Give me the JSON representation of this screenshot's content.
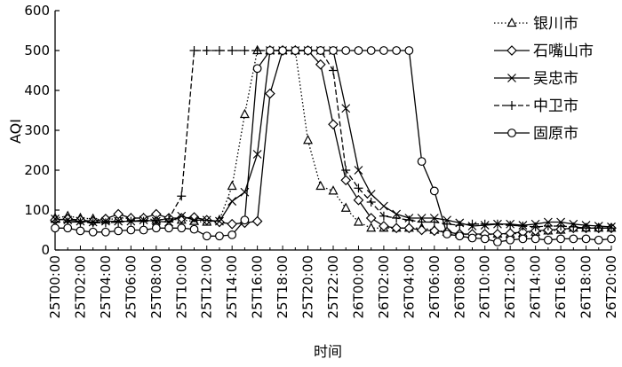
{
  "chart_data": {
    "type": "line",
    "title": "",
    "xlabel": "时间",
    "ylabel": "AQI",
    "ylim": [
      0,
      600
    ],
    "y_ticks": [
      0,
      100,
      200,
      300,
      400,
      500,
      600
    ],
    "x_tick_labels": [
      "25T00:00",
      "25T02:00",
      "25T04:00",
      "25T06:00",
      "25T08:00",
      "25T10:00",
      "25T12:00",
      "25T14:00",
      "25T16:00",
      "25T18:00",
      "25T20:00",
      "25T22:00",
      "26T00:00",
      "26T02:00",
      "26T04:00",
      "26T06:00",
      "26T08:00",
      "26T10:00",
      "26T12:00",
      "26T14:00",
      "26T16:00",
      "26T18:00",
      "26T20:00"
    ],
    "x_hours_range": [
      0,
      44
    ],
    "grid": false,
    "legend_position": "top-right",
    "series": [
      {
        "name": "银川市",
        "marker": "triangle",
        "dash": "dotted",
        "x": [
          0,
          1,
          2,
          3,
          4,
          5,
          6,
          7,
          8,
          9,
          10,
          11,
          12,
          13,
          14,
          15,
          16,
          17,
          18,
          19,
          20,
          21,
          22,
          23,
          24,
          25,
          26,
          27,
          28,
          29,
          30,
          31,
          32,
          33,
          34,
          35,
          36,
          37,
          38,
          39,
          40,
          41,
          42,
          43,
          44
        ],
        "values": [
          80,
          85,
          80,
          78,
          75,
          80,
          80,
          80,
          75,
          78,
          75,
          72,
          70,
          75,
          160,
          340,
          500,
          500,
          500,
          500,
          275,
          160,
          148,
          105,
          70,
          55,
          55,
          55,
          55,
          55,
          50,
          45,
          40,
          38,
          38,
          40,
          40,
          42,
          45,
          48,
          50,
          55,
          55,
          55,
          55
        ]
      },
      {
        "name": "石嘴山市",
        "marker": "diamond",
        "dash": "solid",
        "x": [
          0,
          1,
          2,
          3,
          4,
          5,
          6,
          7,
          8,
          9,
          10,
          11,
          12,
          13,
          14,
          15,
          16,
          17,
          18,
          19,
          20,
          21,
          22,
          23,
          24,
          25,
          26,
          27,
          28,
          29,
          30,
          31,
          32,
          33,
          34,
          35,
          36,
          37,
          38,
          39,
          40,
          41,
          42,
          43,
          44
        ],
        "values": [
          75,
          78,
          75,
          72,
          78,
          90,
          80,
          80,
          90,
          80,
          80,
          82,
          75,
          70,
          65,
          68,
          72,
          392,
          500,
          500,
          500,
          465,
          315,
          175,
          125,
          80,
          60,
          55,
          55,
          50,
          48,
          45,
          40,
          40,
          40,
          40,
          42,
          45,
          48,
          50,
          52,
          55,
          55,
          55,
          55
        ]
      },
      {
        "name": "吴忠市",
        "marker": "x",
        "dash": "solid",
        "x": [
          0,
          1,
          2,
          3,
          4,
          5,
          6,
          7,
          8,
          9,
          10,
          11,
          12,
          13,
          14,
          15,
          16,
          17,
          18,
          19,
          20,
          21,
          22,
          23,
          24,
          25,
          26,
          27,
          28,
          29,
          30,
          31,
          32,
          33,
          34,
          35,
          36,
          37,
          38,
          39,
          40,
          41,
          42,
          43,
          44
        ],
        "values": [
          78,
          75,
          72,
          70,
          72,
          72,
          72,
          75,
          72,
          70,
          85,
          75,
          75,
          72,
          122,
          145,
          240,
          500,
          500,
          500,
          500,
          500,
          500,
          355,
          200,
          140,
          110,
          90,
          80,
          80,
          80,
          75,
          68,
          60,
          62,
          65,
          65,
          62,
          65,
          70,
          70,
          65,
          62,
          60,
          58
        ]
      },
      {
        "name": "中卫市",
        "marker": "plus",
        "dash": "dashed",
        "x": [
          0,
          1,
          2,
          3,
          4,
          5,
          6,
          7,
          8,
          9,
          10,
          11,
          12,
          13,
          14,
          15,
          16,
          17,
          18,
          19,
          20,
          21,
          22,
          23,
          24,
          25,
          26,
          27,
          28,
          29,
          30,
          31,
          32,
          33,
          34,
          35,
          36,
          37,
          38,
          39,
          40,
          41,
          42,
          43,
          44
        ],
        "values": [
          70,
          70,
          70,
          68,
          68,
          70,
          72,
          72,
          75,
          78,
          135,
          500,
          500,
          500,
          500,
          500,
          500,
          500,
          500,
          500,
          500,
          500,
          450,
          200,
          155,
          120,
          85,
          80,
          75,
          70,
          70,
          65,
          62,
          65,
          65,
          65,
          62,
          60,
          58,
          60,
          60,
          58,
          55,
          55,
          55
        ]
      },
      {
        "name": "固原市",
        "marker": "circle",
        "dash": "solid",
        "x": [
          0,
          1,
          2,
          3,
          4,
          5,
          6,
          7,
          8,
          9,
          10,
          11,
          12,
          13,
          14,
          15,
          16,
          17,
          18,
          19,
          20,
          21,
          22,
          23,
          24,
          25,
          26,
          27,
          28,
          29,
          30,
          31,
          32,
          33,
          34,
          35,
          36,
          37,
          38,
          39,
          40,
          41,
          42,
          43,
          44
        ],
        "values": [
          55,
          55,
          48,
          45,
          45,
          48,
          50,
          50,
          55,
          55,
          55,
          52,
          35,
          35,
          38,
          75,
          455,
          500,
          500,
          500,
          500,
          500,
          500,
          500,
          500,
          500,
          500,
          500,
          500,
          222,
          148,
          40,
          35,
          30,
          28,
          20,
          25,
          28,
          28,
          25,
          28,
          28,
          28,
          25,
          28
        ]
      }
    ]
  }
}
